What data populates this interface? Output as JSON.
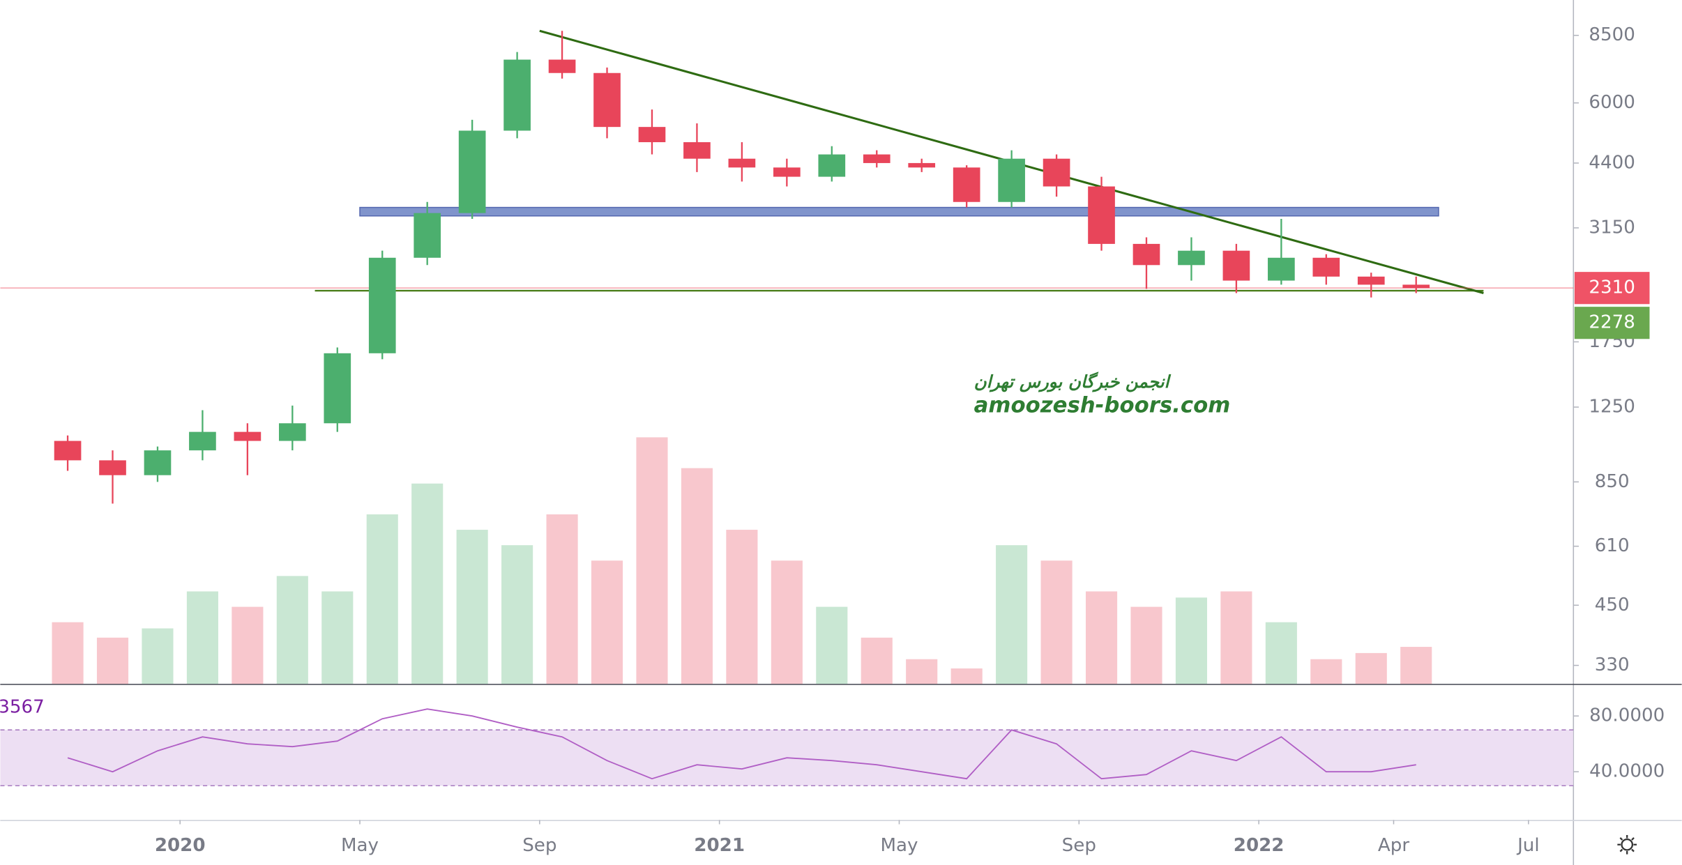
{
  "chart_data": {
    "type": "candlestick",
    "x": [
      "2019-10",
      "2019-11",
      "2019-12",
      "2020-01",
      "2020-02",
      "2020-03",
      "2020-04",
      "2020-05",
      "2020-06",
      "2020-07",
      "2020-08",
      "2020-09",
      "2020-10",
      "2020-11",
      "2020-12",
      "2021-01",
      "2021-02",
      "2021-03",
      "2021-04",
      "2021-05",
      "2021-06",
      "2021-07",
      "2021-08",
      "2021-09",
      "2021-10",
      "2021-11",
      "2021-12",
      "2022-01",
      "2022-02",
      "2022-03",
      "2022-04"
    ],
    "open": [
      1050,
      950,
      880,
      1000,
      1100,
      1050,
      1150,
      1650,
      2700,
      3400,
      5200,
      7500,
      7000,
      5300,
      4900,
      4500,
      4300,
      4100,
      4600,
      4400,
      4300,
      3600,
      4500,
      3900,
      2900,
      2600,
      2800,
      2400,
      2700,
      2450,
      2350
    ],
    "high": [
      1080,
      1000,
      1020,
      1230,
      1150,
      1260,
      1700,
      2800,
      3600,
      5500,
      7800,
      8700,
      7200,
      5800,
      5400,
      4900,
      4500,
      4800,
      4700,
      4500,
      4350,
      4700,
      4600,
      4100,
      3000,
      3000,
      2900,
      3300,
      2750,
      2500,
      2450
    ],
    "low": [
      900,
      760,
      850,
      950,
      880,
      1000,
      1100,
      1600,
      2600,
      3300,
      5000,
      6800,
      5000,
      4600,
      4200,
      4000,
      3900,
      4000,
      4300,
      4200,
      3500,
      3500,
      3700,
      2800,
      2300,
      2400,
      2250,
      2350,
      2350,
      2200,
      2250
    ],
    "close": [
      950,
      880,
      1000,
      1100,
      1050,
      1150,
      1650,
      2700,
      3400,
      5200,
      7500,
      7000,
      5300,
      4900,
      4500,
      4300,
      4100,
      4600,
      4400,
      4300,
      3600,
      4500,
      3900,
      2900,
      2600,
      2800,
      2400,
      2700,
      2450,
      2350,
      2310
    ],
    "volume": [
      20,
      15,
      18,
      30,
      25,
      35,
      30,
      55,
      65,
      50,
      45,
      55,
      40,
      80,
      70,
      50,
      40,
      25,
      15,
      8,
      5,
      45,
      40,
      30,
      25,
      28,
      30,
      20,
      8,
      10,
      12
    ],
    "up_color": "#4caf6e",
    "down_color": "#e8455a",
    "xlim": [
      "2019-09",
      "2022-08"
    ],
    "xticks": [
      {
        "value": "2020-01",
        "label": "2020"
      },
      {
        "value": "2020-05",
        "label": "May"
      },
      {
        "value": "2020-09",
        "label": "Sep"
      },
      {
        "value": "2021-01",
        "label": "2021"
      },
      {
        "value": "2021-05",
        "label": "May"
      },
      {
        "value": "2021-09",
        "label": "Sep"
      },
      {
        "value": "2022-01",
        "label": "2022"
      },
      {
        "value": "2022-04",
        "label": "Apr"
      },
      {
        "value": "2022-07",
        "label": "Jul"
      }
    ],
    "ylim": [
      300,
      10200
    ],
    "yticks": [
      330,
      450,
      610,
      850,
      1250,
      1750,
      3150,
      4400,
      6000,
      8500
    ],
    "log_scale": true,
    "trendline": {
      "x": [
        "2020-09",
        "2022-06"
      ],
      "y": [
        8700,
        2250
      ],
      "color": "#2e6b12"
    },
    "support": {
      "x": [
        "2020-04",
        "2022-06"
      ],
      "y": 2278,
      "color": "#4a7d1a"
    },
    "zone": {
      "x": [
        "2020-05",
        "2022-05"
      ],
      "y": [
        3350,
        3500
      ],
      "color": "#8094cc"
    },
    "last_prices": [
      {
        "value": 2310,
        "color": "#ef5366"
      },
      {
        "value": 2278,
        "color": "#6aa84f"
      }
    ],
    "watermark": [
      "انجمن خبرگان بورس تهران",
      "amoozesh-boors.com"
    ],
    "rsi": {
      "label": "3567",
      "color": "#b05ec5",
      "values": [
        50,
        40,
        55,
        65,
        60,
        58,
        62,
        78,
        85,
        80,
        72,
        65,
        48,
        35,
        45,
        42,
        50,
        48,
        45,
        40,
        35,
        70,
        60,
        35,
        38,
        55,
        48,
        65,
        40,
        40,
        45
      ],
      "ylim": [
        5.4,
        101.5
      ],
      "yticks": [
        {
          "value": 80,
          "label": "80.0000"
        },
        {
          "value": 40,
          "label": "40.0000"
        }
      ],
      "band": [
        30,
        70
      ]
    }
  }
}
